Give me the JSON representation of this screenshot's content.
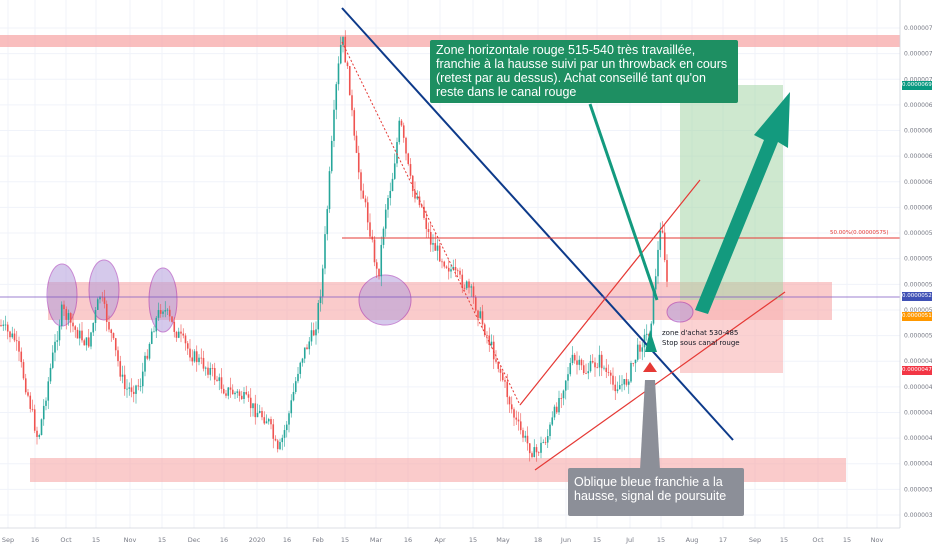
{
  "chart_data": {
    "type": "candlestick",
    "y_axis": {
      "ticks": [
        "0.00000740",
        "0.00000720",
        "0.00000700",
        "0.00000680",
        "0.00000660",
        "0.00000640",
        "0.00000620",
        "0.00000600",
        "0.00000580",
        "0.00000560",
        "0.00000540",
        "0.00000520",
        "0.00000500",
        "0.00000480",
        "0.00000460",
        "0.00000440",
        "0.00000420",
        "0.00000400",
        "0.00000380",
        "0.00000360"
      ]
    },
    "x_axis": {
      "ticks": [
        "Sep",
        "16",
        "Oct",
        "15",
        "Nov",
        "15",
        "Dec",
        "16",
        "2020",
        "16",
        "Feb",
        "15",
        "Mar",
        "16",
        "Apr",
        "15",
        "May",
        "18",
        "Jun",
        "15",
        "Jul",
        "15",
        "Aug",
        "17",
        "Sep",
        "15",
        "Oct",
        "15",
        "Nov"
      ]
    },
    "price_tags": [
      {
        "text": "0.00000694",
        "color": "#089981"
      },
      {
        "text": "0.00000529",
        "color": "#3f51b5"
      },
      {
        "text": "0.00000514",
        "color": "#ff9800"
      },
      {
        "text": "0.00000471",
        "color": "#f23645"
      }
    ],
    "fib_label": "50.00%(0.00000575)",
    "annotations": {
      "green_note": "Zone horizontale rouge 515-540 très travaillée, franchie à la hausse suivi par un throwback en cours (retest par au dessus). Achat conseillé tant qu'on reste dans le canal rouge",
      "grey_note": "Oblique bleue franchie a la hausse, signal de poursuite",
      "zone_line1": "zone d'achat 530-485",
      "zone_line2": "Stop sous canal rouge"
    },
    "colors": {
      "up": "#26a69a",
      "down": "#ef5350",
      "zone": "#f7a8a8",
      "blue_line": "#0d3a8a",
      "channel": "#e53935",
      "target": "#a5d6a7",
      "arrow": "#139a7e"
    }
  }
}
